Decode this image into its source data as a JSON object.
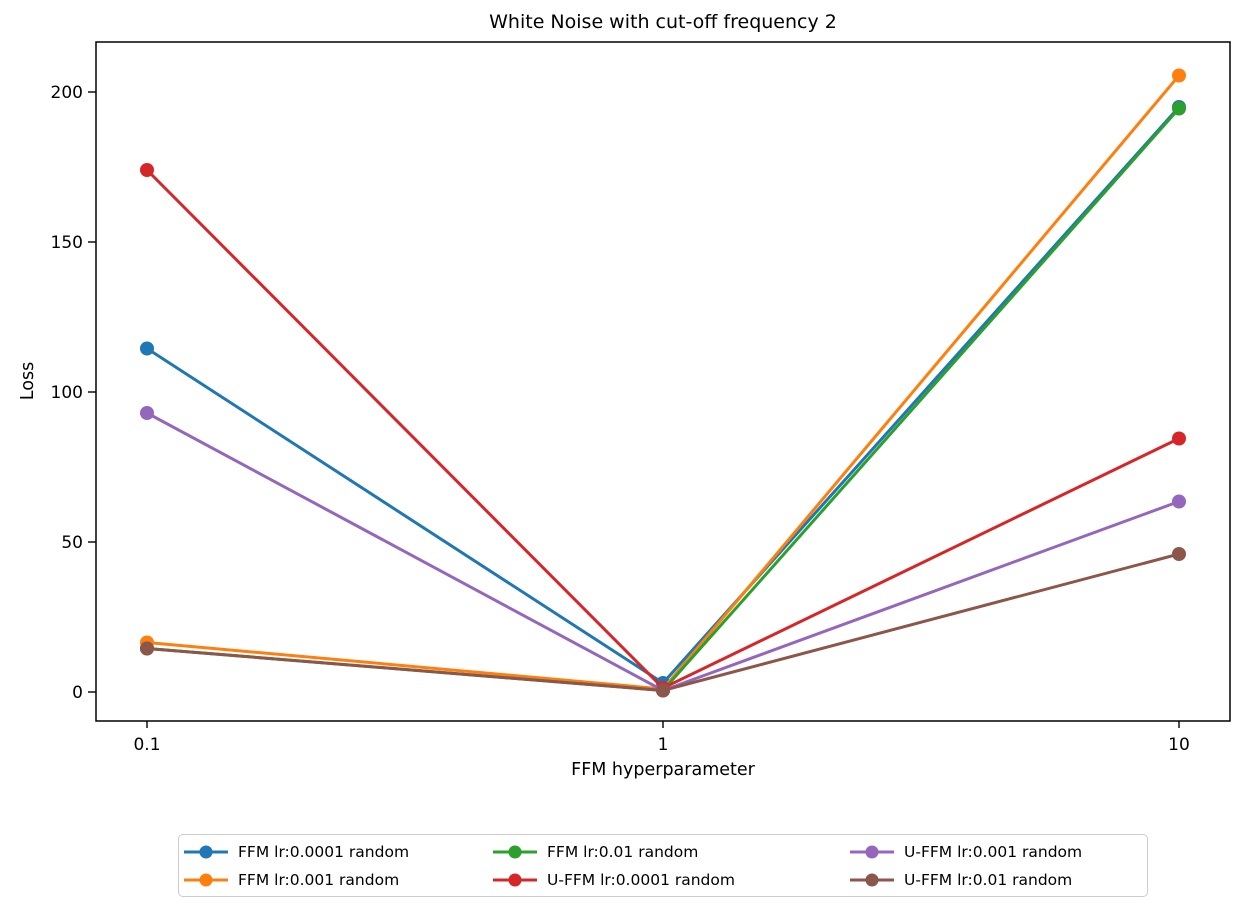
{
  "chart_data": {
    "type": "line",
    "title": "White Noise with cut-off frequency 2",
    "xlabel": "FFM hyperparameter",
    "ylabel": "Loss",
    "x_scale": "log",
    "x": [
      0.1,
      1,
      10
    ],
    "x_tick_labels": [
      "0.1",
      "1",
      "10"
    ],
    "y_ticks": [
      0,
      50,
      100,
      150,
      200
    ],
    "y_tick_labels": [
      "0",
      "50",
      "100",
      "150",
      "200"
    ],
    "ylim": [
      -9.7,
      216.7
    ],
    "grid": false,
    "legend_position": "below-chart",
    "legend_columns": 3,
    "series": [
      {
        "name": "FFM lr:0.0001 random",
        "color": "#1f77b4",
        "values": [
          114.5,
          3.0,
          195.0
        ]
      },
      {
        "name": "FFM lr:0.001 random",
        "color": "#ff7f0e",
        "values": [
          16.5,
          1.0,
          205.5
        ]
      },
      {
        "name": "FFM lr:0.01 random",
        "color": "#2ca02c",
        "values": [
          14.5,
          0.5,
          194.5
        ]
      },
      {
        "name": "U-FFM lr:0.0001 random",
        "color": "#d62728",
        "values": [
          174.0,
          1.3,
          84.5
        ]
      },
      {
        "name": "U-FFM lr:0.001 random",
        "color": "#9467bd",
        "values": [
          93.0,
          0.5,
          63.5
        ]
      },
      {
        "name": "U-FFM lr:0.01 random",
        "color": "#8c564b",
        "values": [
          14.5,
          0.5,
          46.0
        ]
      }
    ],
    "legend_column_order": [
      [
        0,
        1
      ],
      [
        2,
        3
      ],
      [
        4,
        5
      ]
    ],
    "axis_color": "#000000",
    "marker": "circle",
    "marker_radius": 7,
    "line_width": 3
  }
}
